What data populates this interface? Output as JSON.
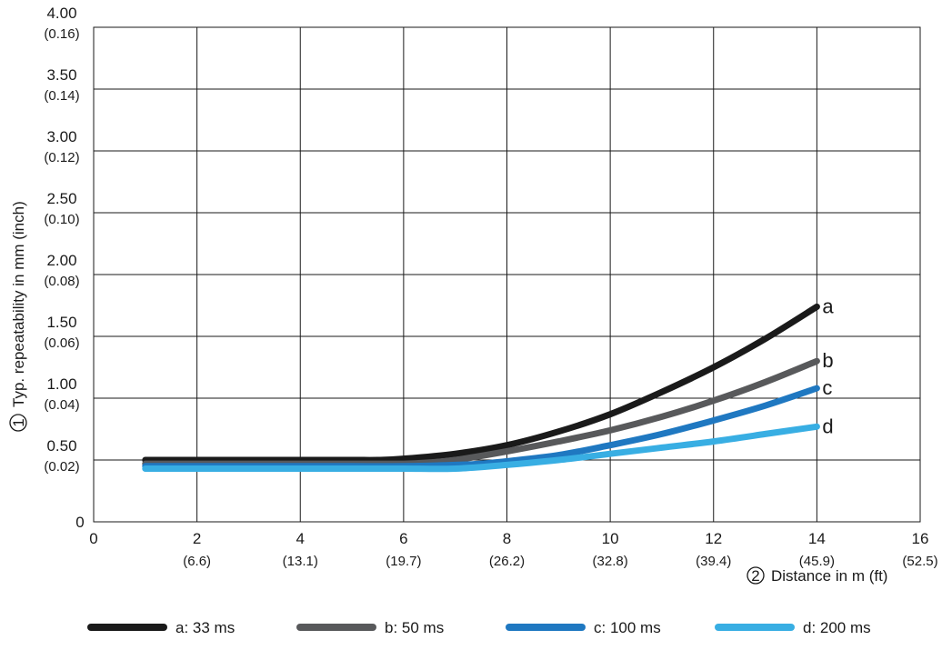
{
  "chart_data": {
    "type": "line",
    "ylabel": "Typ. repeatability in mm (inch)",
    "ylabel_marker": "1",
    "xlabel": "Distance in m (ft)",
    "xlabel_marker": "2",
    "xlim": [
      0,
      16
    ],
    "ylim": [
      0,
      4.0
    ],
    "grid": true,
    "legend_position": "bottom",
    "x_ticks": [
      {
        "value": 0,
        "label": "0",
        "sub": ""
      },
      {
        "value": 2,
        "label": "2",
        "sub": "(6.6)"
      },
      {
        "value": 4,
        "label": "4",
        "sub": "(13.1)"
      },
      {
        "value": 6,
        "label": "6",
        "sub": "(19.7)"
      },
      {
        "value": 8,
        "label": "8",
        "sub": "(26.2)"
      },
      {
        "value": 10,
        "label": "10",
        "sub": "(32.8)"
      },
      {
        "value": 12,
        "label": "12",
        "sub": "(39.4)"
      },
      {
        "value": 14,
        "label": "14",
        "sub": "(45.9)"
      },
      {
        "value": 16,
        "label": "16",
        "sub": "(52.5)"
      }
    ],
    "y_ticks": [
      {
        "value": 0,
        "label": "0",
        "sub": ""
      },
      {
        "value": 0.5,
        "label": "0.50",
        "sub": "(0.02)"
      },
      {
        "value": 1.0,
        "label": "1.00",
        "sub": "(0.04)"
      },
      {
        "value": 1.5,
        "label": "1.50",
        "sub": "(0.06)"
      },
      {
        "value": 2.0,
        "label": "2.00",
        "sub": "(0.08)"
      },
      {
        "value": 2.5,
        "label": "2.50",
        "sub": "(0.10)"
      },
      {
        "value": 3.0,
        "label": "3.00",
        "sub": "(0.12)"
      },
      {
        "value": 3.5,
        "label": "3.50",
        "sub": "(0.14)"
      },
      {
        "value": 4.0,
        "label": "4.00",
        "sub": "(0.16)"
      }
    ],
    "series": [
      {
        "name": "a: 33 ms",
        "label": "a",
        "color": "#1a1a1a",
        "x": [
          1,
          2,
          3,
          4,
          5,
          5.5,
          6,
          7,
          8,
          9,
          10,
          11,
          12,
          13,
          14
        ],
        "y": [
          0.5,
          0.5,
          0.5,
          0.5,
          0.5,
          0.5,
          0.51,
          0.55,
          0.62,
          0.73,
          0.87,
          1.05,
          1.25,
          1.48,
          1.74
        ]
      },
      {
        "name": "b: 50 ms",
        "label": "b",
        "color": "#58595b",
        "x": [
          1,
          2,
          3,
          4,
          5,
          6,
          6.5,
          7,
          8,
          9,
          10,
          11,
          12,
          13,
          14
        ],
        "y": [
          0.47,
          0.47,
          0.47,
          0.47,
          0.47,
          0.47,
          0.48,
          0.5,
          0.57,
          0.65,
          0.74,
          0.85,
          0.98,
          1.13,
          1.3
        ]
      },
      {
        "name": "c: 100 ms",
        "label": "c",
        "color": "#1f78c1",
        "x": [
          1,
          2,
          3,
          4,
          5,
          6,
          7,
          7.5,
          8,
          9,
          10,
          11,
          12,
          13,
          14
        ],
        "y": [
          0.45,
          0.45,
          0.45,
          0.45,
          0.45,
          0.45,
          0.46,
          0.47,
          0.49,
          0.54,
          0.62,
          0.71,
          0.82,
          0.94,
          1.08
        ]
      },
      {
        "name": "d: 200 ms",
        "label": "d",
        "color": "#38aee3",
        "x": [
          1,
          2,
          3,
          4,
          5,
          6,
          7,
          8,
          9,
          10,
          11,
          12,
          13,
          14
        ],
        "y": [
          0.43,
          0.43,
          0.43,
          0.43,
          0.43,
          0.43,
          0.43,
          0.46,
          0.5,
          0.55,
          0.6,
          0.65,
          0.71,
          0.77
        ]
      }
    ]
  }
}
